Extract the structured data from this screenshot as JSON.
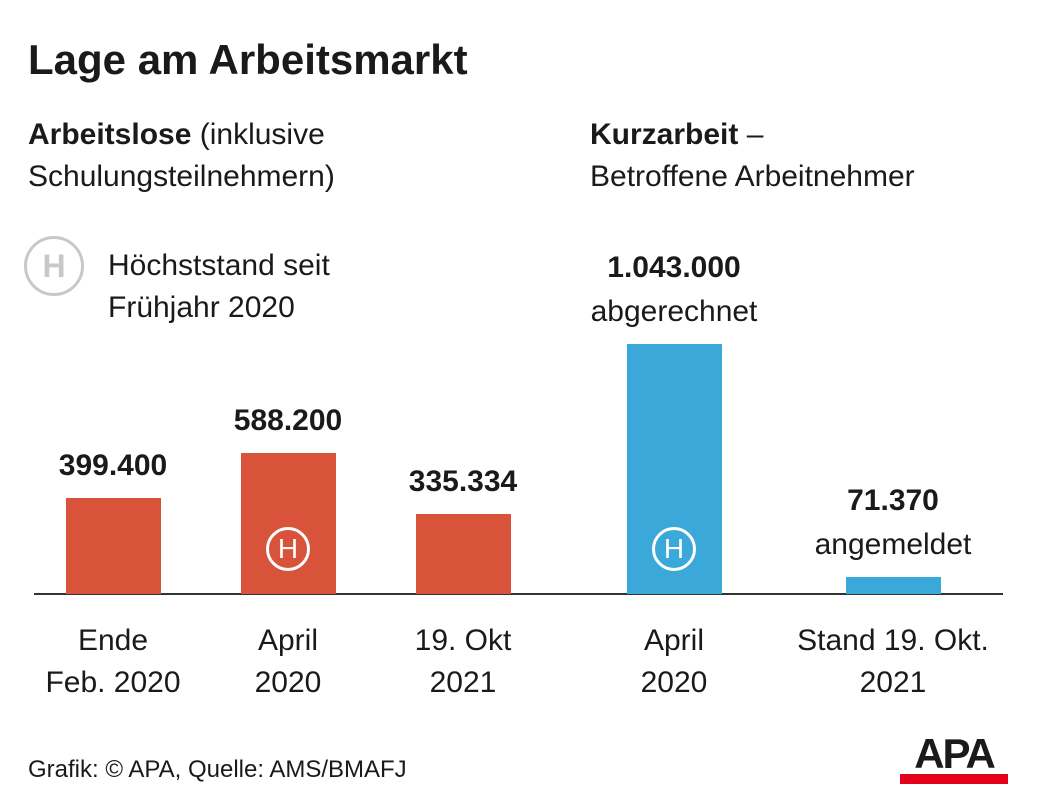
{
  "title": "Lage am Arbeitsmarkt",
  "legend": {
    "symbol": "H",
    "label": "Höchststand seit\nFrühjahr 2020"
  },
  "chart_data": [
    {
      "type": "bar",
      "subtitle_bold": "Arbeitslose",
      "subtitle": "(inklusive\nSchulungsteilnehmern)",
      "categories": [
        "Ende\nFeb. 2020",
        "April\n2020",
        "19. Okt\n2021"
      ],
      "values": [
        399400,
        588200,
        335334
      ],
      "value_labels": [
        "399.400",
        "588.200",
        "335.334"
      ],
      "markers": [
        null,
        "H",
        null
      ],
      "color": "#d9523a"
    },
    {
      "type": "bar",
      "subtitle_bold": "Kurzarbeit",
      "subtitle": "–\nBetroffene Arbeitnehmer",
      "categories": [
        "April\n2020",
        "Stand 19. Okt.\n2021"
      ],
      "values": [
        1043000,
        71370
      ],
      "value_labels": [
        "1.043.000",
        "71.370"
      ],
      "value_notes": [
        "abgerechnet",
        "angemeldet"
      ],
      "markers": [
        "H",
        null
      ],
      "color": "#3aa8d8"
    }
  ],
  "source": "Grafik: © APA, Quelle: AMS/BMAFJ",
  "logo": "APA"
}
